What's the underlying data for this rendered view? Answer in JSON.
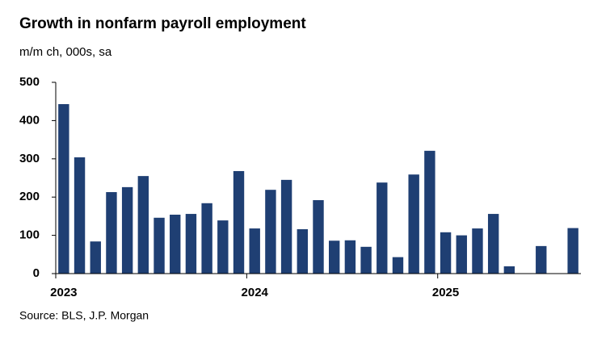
{
  "chart_data": {
    "type": "bar",
    "title": "Growth in nonfarm payroll employment",
    "subtitle": "m/m ch, 000s, sa",
    "source": "Source: BLS, J.P. Morgan",
    "categories": [
      "2023",
      null,
      null,
      null,
      null,
      null,
      null,
      null,
      null,
      null,
      null,
      null,
      "2024",
      null,
      null,
      null,
      null,
      null,
      null,
      null,
      null,
      null,
      null,
      null,
      "2025",
      null,
      null,
      null,
      null,
      null,
      null,
      null,
      null
    ],
    "values": [
      443,
      304,
      84,
      213,
      226,
      255,
      146,
      154,
      156,
      184,
      139,
      268,
      118,
      219,
      245,
      116,
      192,
      86,
      87,
      70,
      238,
      43,
      259,
      321,
      108,
      100,
      118,
      156,
      19,
      0,
      72,
      0,
      119
    ],
    "color": "#1f3f73",
    "ylim": [
      0,
      500
    ],
    "yticks": [
      0,
      100,
      200,
      300,
      400,
      500
    ],
    "grid": false
  }
}
